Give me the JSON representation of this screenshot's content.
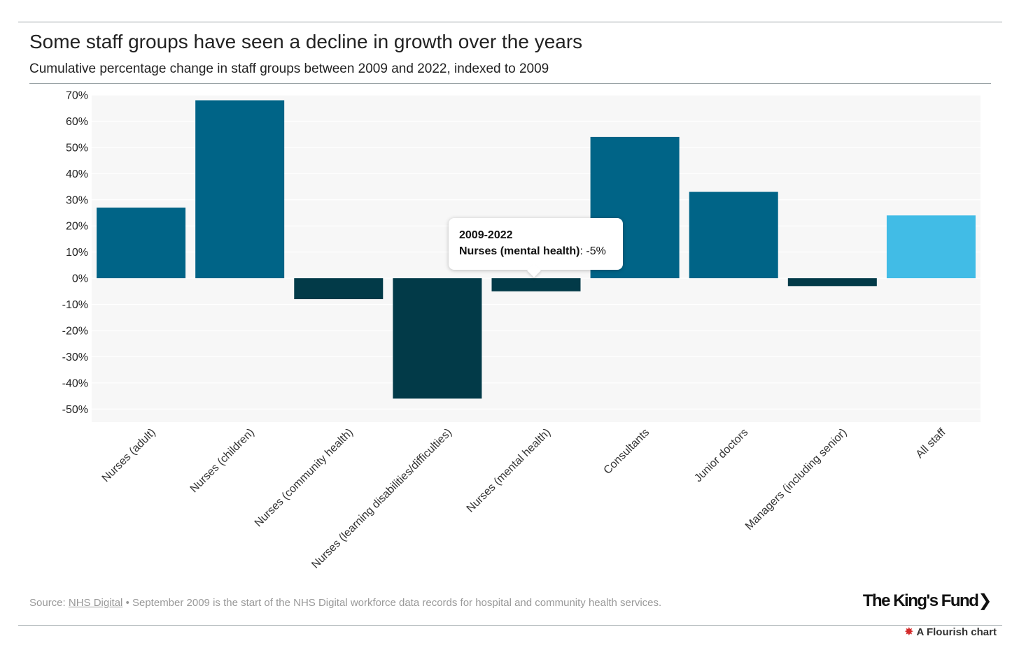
{
  "chart_data": {
    "type": "bar",
    "title": "Some staff groups have seen a decline in growth over the years",
    "subtitle": "Cumulative percentage change in staff groups between 2009 and 2022, indexed to 2009",
    "series_name": "2009-2022",
    "categories": [
      "Nurses (adult)",
      "Nurses (children)",
      "Nurses (community health)",
      "Nurses (learning disabilities/difficulties)",
      "Nurses (mental health)",
      "Consultants",
      "Junior doctors",
      "Managers (including senior)",
      "All staff"
    ],
    "values": [
      27,
      68,
      -8,
      -46,
      -5,
      54,
      33,
      -3,
      24
    ],
    "ylim": [
      -55,
      70
    ],
    "y_ticks": [
      70,
      60,
      50,
      40,
      30,
      20,
      10,
      0,
      -10,
      -20,
      -30,
      -40,
      -50
    ],
    "tick_suffix": "%",
    "grid": true,
    "colors": {
      "positive": "#006487",
      "negative": "#023a48",
      "highlight": "#41bce6",
      "plot_background": "#f7f7f7",
      "grid": "#ffffff"
    },
    "highlight_category": "All staff"
  },
  "tooltip": {
    "header": "2009-2022",
    "label": "Nurses (mental health)",
    "value": "-5%"
  },
  "footer": {
    "source_prefix": "Source: ",
    "source_link": "NHS Digital",
    "note": " • September 2009 is the start of the NHS Digital workforce data records for hospital and community health services."
  },
  "brand": "The King's Fund",
  "credit": "A Flourish chart"
}
